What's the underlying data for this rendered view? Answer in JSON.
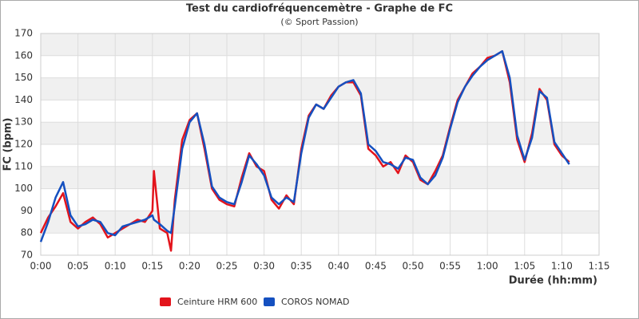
{
  "chart_data": {
    "type": "line",
    "title": "Test du cardiofréquencemètre - Graphe de FC",
    "subtitle": "(© Sport Passion)",
    "x_label": "Durée (hh:mm)",
    "y_label": "FC (bpm)",
    "x": [
      0,
      1,
      2,
      3,
      4,
      5,
      6,
      7,
      8,
      9,
      10,
      11,
      12,
      13,
      14,
      15,
      15.2,
      16,
      17,
      17.5,
      18,
      19,
      20,
      21,
      22,
      23,
      24,
      25,
      26,
      27,
      28,
      29,
      30,
      31,
      32,
      33,
      34,
      35,
      36,
      37,
      38,
      39,
      40,
      41,
      42,
      43,
      44,
      45,
      46,
      47,
      48,
      49,
      50,
      51,
      52,
      53,
      54,
      55,
      56,
      57,
      58,
      59,
      60,
      61,
      62,
      63,
      64,
      65,
      66,
      67,
      68,
      69,
      70,
      71
    ],
    "series": [
      {
        "name": "Ceinture HRM 600",
        "color": "#e3141c",
        "values": [
          80,
          87,
          92,
          98,
          85,
          82,
          85,
          87,
          84,
          78,
          80,
          82,
          84,
          86,
          85,
          90,
          108,
          82,
          80,
          72,
          95,
          122,
          131,
          134,
          118,
          100,
          95,
          93,
          92,
          105,
          116,
          110,
          108,
          95,
          91,
          97,
          93,
          118,
          133,
          138,
          136,
          142,
          146,
          148,
          148,
          142,
          118,
          115,
          110,
          112,
          107,
          115,
          112,
          104,
          102,
          108,
          115,
          128,
          140,
          146,
          152,
          155,
          159,
          160,
          162,
          148,
          122,
          112,
          125,
          145,
          140,
          120,
          115,
          112
        ]
      },
      {
        "name": "COROS NOMAD",
        "color": "#1550c0",
        "values": [
          76,
          85,
          96,
          103,
          88,
          83,
          84,
          86,
          85,
          80,
          79,
          83,
          84,
          85,
          86,
          88,
          86,
          84,
          81,
          80,
          92,
          118,
          130,
          134,
          120,
          101,
          96,
          94,
          93,
          103,
          115,
          111,
          106,
          96,
          93,
          96,
          94,
          116,
          132,
          138,
          136,
          141,
          146,
          148,
          149,
          143,
          120,
          117,
          112,
          111,
          109,
          114,
          113,
          105,
          102,
          106,
          114,
          127,
          139,
          146,
          151,
          155,
          158,
          160,
          162,
          150,
          124,
          113,
          123,
          144,
          141,
          121,
          116,
          111
        ]
      }
    ],
    "xlim": [
      0,
      75
    ],
    "xticks": [
      {
        "value": 0,
        "label": "0:00"
      },
      {
        "value": 5,
        "label": "0:05"
      },
      {
        "value": 10,
        "label": "0:10"
      },
      {
        "value": 15,
        "label": "0:15"
      },
      {
        "value": 20,
        "label": "0:20"
      },
      {
        "value": 25,
        "label": "0:25"
      },
      {
        "value": 30,
        "label": "0:30"
      },
      {
        "value": 35,
        "label": "0:35"
      },
      {
        "value": 40,
        "label": "0:40"
      },
      {
        "value": 45,
        "label": "0:45"
      },
      {
        "value": 50,
        "label": "0:50"
      },
      {
        "value": 55,
        "label": "0:55"
      },
      {
        "value": 60,
        "label": "1:00"
      },
      {
        "value": 65,
        "label": "1:05"
      },
      {
        "value": 70,
        "label": "1:10"
      },
      {
        "value": 75,
        "label": "1:15"
      }
    ],
    "ylim": [
      70,
      170
    ],
    "yticks": [
      70,
      80,
      90,
      100,
      110,
      120,
      130,
      140,
      150,
      160,
      170
    ],
    "grid": true
  }
}
